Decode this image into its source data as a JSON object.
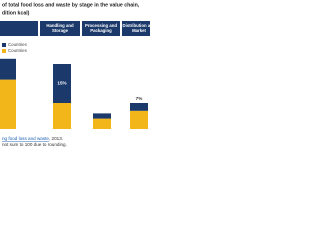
{
  "chart_data": {
    "type": "bar",
    "title_lines": [
      "of total food loss and waste by stage in the value chain,",
      "dition kcal)"
    ],
    "categories": [
      null,
      "Handling and Storage",
      "Processing and Packaging",
      "Distribution and Market"
    ],
    "series": [
      {
        "name": "Countries",
        "color": "#1b3a6b",
        "values": [
          8,
          15,
          2,
          3
        ],
        "value_labels": [
          null,
          "15%",
          null,
          null
        ]
      },
      {
        "name": "Countries",
        "color": "#f2b61b",
        "values": [
          19,
          10,
          4,
          7
        ],
        "value_labels": [
          null,
          null,
          null,
          "7%"
        ]
      }
    ],
    "source_link": "ng food loss and waste",
    "source_rest": ", 2013.",
    "note": "not sum to 100 due to rounding."
  }
}
